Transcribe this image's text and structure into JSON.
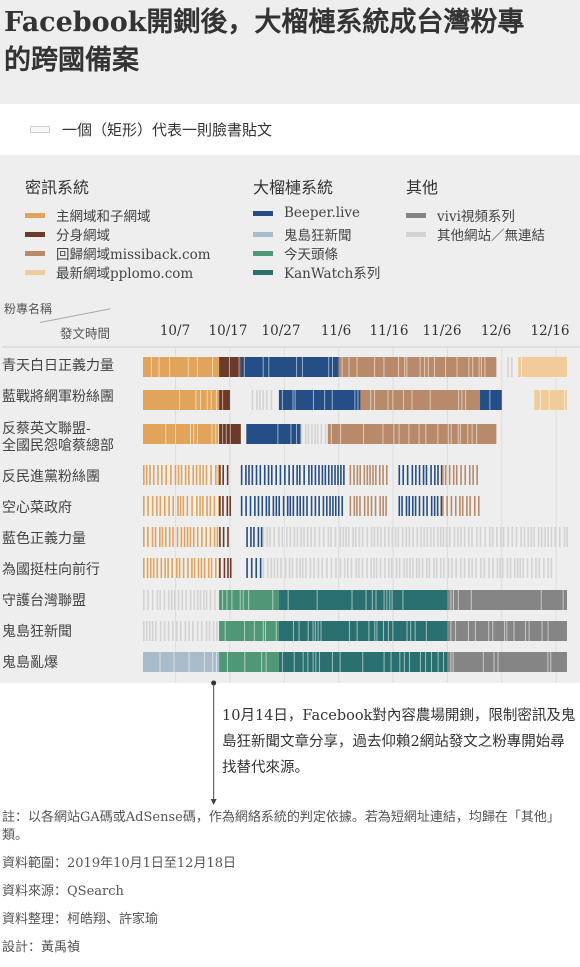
{
  "title_line1": "Facebook開鍘後，大榴槤系統成台灣粉專",
  "title_line2": "的跨國備案",
  "key_note": "一個（矩形）代表一則臉書貼文",
  "legend": {
    "groups": [
      {
        "title": "密訊系統",
        "items": [
          {
            "label": "主網域和子網域",
            "color": "#e2a45a"
          },
          {
            "label": "分身網域",
            "color": "#6b3a2a"
          },
          {
            "label": "回歸網域missiback.com",
            "color": "#b88a6a"
          },
          {
            "label": "最新網域pplomo.com",
            "color": "#f2cc98"
          }
        ]
      },
      {
        "title": "大榴槤系統",
        "items": [
          {
            "label": "Beeper.live",
            "color": "#254e86"
          },
          {
            "label": "鬼島狂新聞",
            "color": "#a9bccb"
          },
          {
            "label": "今天頭條",
            "color": "#4f9775"
          },
          {
            "label": "KanWatch系列",
            "color": "#2a7071"
          }
        ]
      },
      {
        "title": "其他",
        "items": [
          {
            "label": "vivi視頻系列",
            "color": "#858585"
          },
          {
            "label": "其他網站／無連結",
            "color": "#d3d3d3"
          }
        ]
      }
    ]
  },
  "corner_top": "粉專名稱",
  "corner_bottom": "發文時間",
  "chart_data": {
    "type": "timeline",
    "date_range": [
      "2019-10-01",
      "2019-12-18"
    ],
    "x_ticks": [
      "10/7",
      "10/17",
      "10/27",
      "11/6",
      "11/16",
      "11/26",
      "12/6",
      "12/16"
    ],
    "rows": [
      {
        "name": "青天白日正義力量",
        "segments": [
          [
            "10/01",
            "10/15",
            "main"
          ],
          [
            "10/15",
            "10/19",
            "mirror"
          ],
          [
            "10/19",
            "11/06",
            "beeper"
          ],
          [
            "11/06",
            "12/05",
            "missiback"
          ],
          [
            "12/07",
            "12/08",
            "other"
          ],
          [
            "12/09",
            "12/18",
            "pplomo"
          ]
        ]
      },
      {
        "name": "藍戰將網軍粉絲團",
        "segments": [
          [
            "10/01",
            "10/15",
            "main"
          ],
          [
            "10/15",
            "10/17",
            "mirror"
          ],
          [
            "10/21",
            "10/25",
            "other"
          ],
          [
            "10/26",
            "11/10",
            "beeper"
          ],
          [
            "11/10",
            "12/02",
            "missiback"
          ],
          [
            "12/02",
            "12/06",
            "beeper"
          ],
          [
            "12/12",
            "12/18",
            "pplomo"
          ]
        ]
      },
      {
        "name": "反蔡英文聯盟-\n全國民怨嗆蔡總部",
        "segments": [
          [
            "10/01",
            "10/15",
            "main"
          ],
          [
            "10/15",
            "10/19",
            "mirror"
          ],
          [
            "10/20",
            "10/30",
            "beeper"
          ],
          [
            "10/30",
            "11/04",
            "other"
          ],
          [
            "11/04",
            "12/05",
            "missiback"
          ]
        ]
      },
      {
        "name": "反民進黨粉絲團",
        "segments": [
          [
            "10/01",
            "10/15",
            "main"
          ],
          [
            "10/15",
            "10/17",
            "mirror"
          ],
          [
            "10/19",
            "11/07",
            "beeper"
          ],
          [
            "11/08",
            "11/15",
            "missiback"
          ],
          [
            "11/17",
            "11/25",
            "beeper"
          ],
          [
            "11/25",
            "12/02",
            "missiback"
          ]
        ]
      },
      {
        "name": "空心菜政府",
        "segments": [
          [
            "10/01",
            "10/15",
            "main"
          ],
          [
            "10/15",
            "10/17",
            "mirror"
          ],
          [
            "10/19",
            "11/07",
            "beeper"
          ],
          [
            "11/08",
            "11/15",
            "missiback"
          ],
          [
            "11/17",
            "11/25",
            "beeper"
          ],
          [
            "11/25",
            "12/02",
            "missiback"
          ]
        ]
      },
      {
        "name": "藍色正義力量",
        "segments": [
          [
            "10/01",
            "10/15",
            "main"
          ],
          [
            "10/15",
            "10/17",
            "mirror"
          ],
          [
            "10/20",
            "10/23",
            "beeper"
          ],
          [
            "10/23",
            "12/18",
            "other"
          ]
        ]
      },
      {
        "name": "為國挺柱向前行",
        "segments": [
          [
            "10/01",
            "10/15",
            "main"
          ],
          [
            "10/15",
            "10/17",
            "mirror"
          ],
          [
            "10/20",
            "10/23",
            "beeper"
          ],
          [
            "10/23",
            "12/15",
            "other"
          ]
        ]
      },
      {
        "name": "守護台灣聯盟",
        "segments": [
          [
            "10/01",
            "10/15",
            "other"
          ],
          [
            "10/15",
            "10/26",
            "jintian"
          ],
          [
            "10/26",
            "11/26",
            "kanwatch"
          ],
          [
            "11/26",
            "12/18",
            "vivi"
          ]
        ]
      },
      {
        "name": "鬼島狂新聞",
        "segments": [
          [
            "10/01",
            "10/15",
            "other"
          ],
          [
            "10/15",
            "10/26",
            "jintian"
          ],
          [
            "10/26",
            "11/26",
            "kanwatch"
          ],
          [
            "11/26",
            "12/18",
            "vivi"
          ]
        ]
      },
      {
        "name": "鬼島亂爆",
        "segments": [
          [
            "10/01",
            "10/15",
            "guidao"
          ],
          [
            "10/15",
            "10/26",
            "jintian"
          ],
          [
            "10/26",
            "11/26",
            "kanwatch"
          ],
          [
            "11/26",
            "12/18",
            "vivi"
          ]
        ]
      }
    ],
    "annotation_date": "10/14"
  },
  "annotation": "10月14日，Facebook對內容農場開鍘，限制密訊及鬼島狂新聞文章分享，過去仰賴2網站發文之粉專開始尋找替代來源。",
  "notes": [
    "註：以各網站GA碼或AdSense碼，作為網絡系統的判定依據。若為短網址連結，均歸在「其他」類。",
    "資料範圍：2019年10月1日至12月18日",
    "資料來源：QSearch",
    "資料整理：柯皓翔、許家瑜",
    "設計：黃禹禎"
  ]
}
